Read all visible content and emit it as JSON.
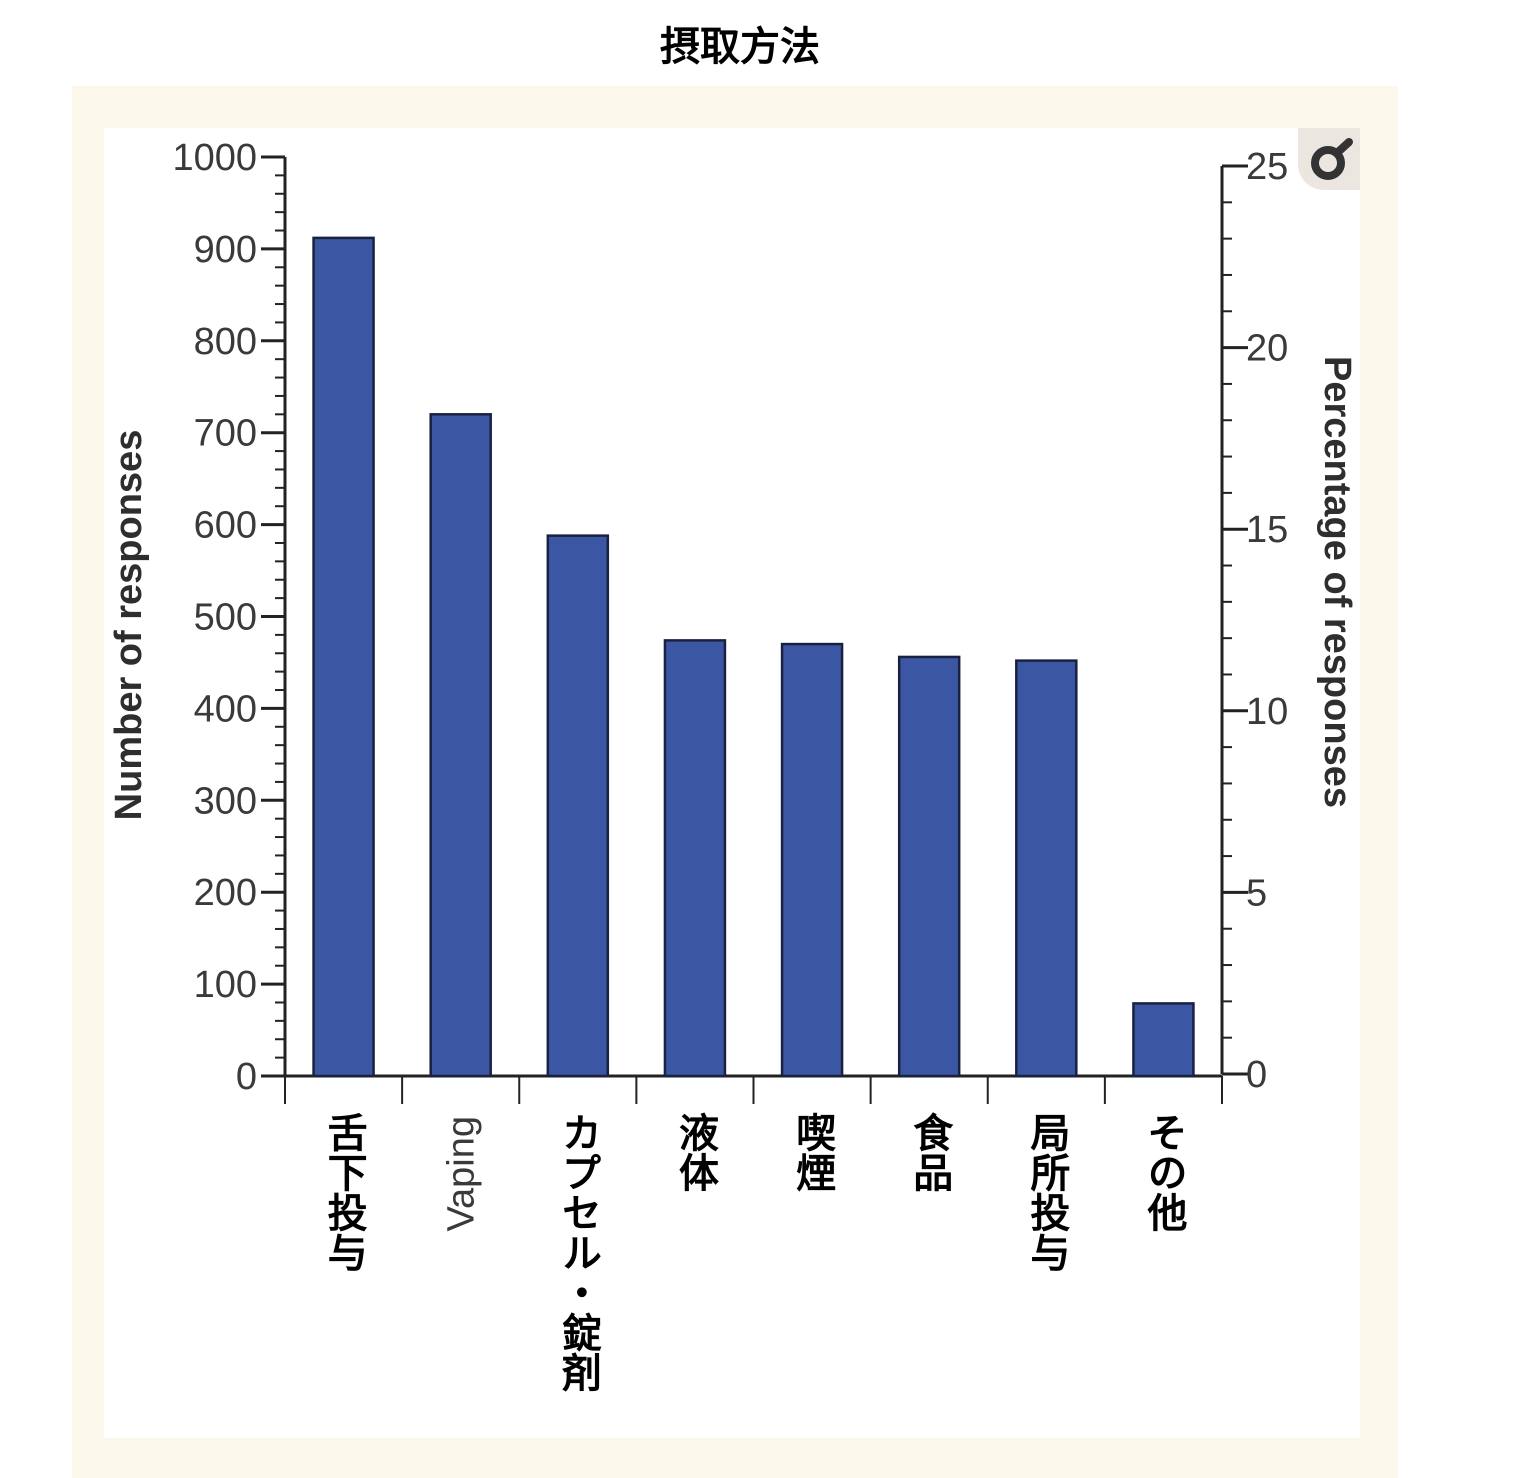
{
  "chart_data": {
    "type": "bar",
    "title": "摂取方法",
    "categories": [
      "舌下投与",
      "Vaping",
      "カプセル・錠剤",
      "液体",
      "喫煙",
      "食品",
      "局所投与",
      "その他"
    ],
    "values": [
      912,
      720,
      588,
      474,
      470,
      456,
      452,
      79
    ],
    "ylabel": "Number of responses",
    "y2label": "Percentage of responses",
    "ylim": [
      0,
      1000
    ],
    "y2lim": [
      0,
      25
    ],
    "yticks": [
      "0",
      "100",
      "200",
      "300",
      "400",
      "500",
      "600",
      "700",
      "800",
      "900",
      "1000"
    ],
    "y2ticks": [
      "0",
      "5",
      "10",
      "15",
      "20",
      "25"
    ],
    "bar_color": "#3b57a3",
    "grid": false,
    "legend": "none"
  },
  "icons": {
    "zoom": "zoom-icon"
  }
}
